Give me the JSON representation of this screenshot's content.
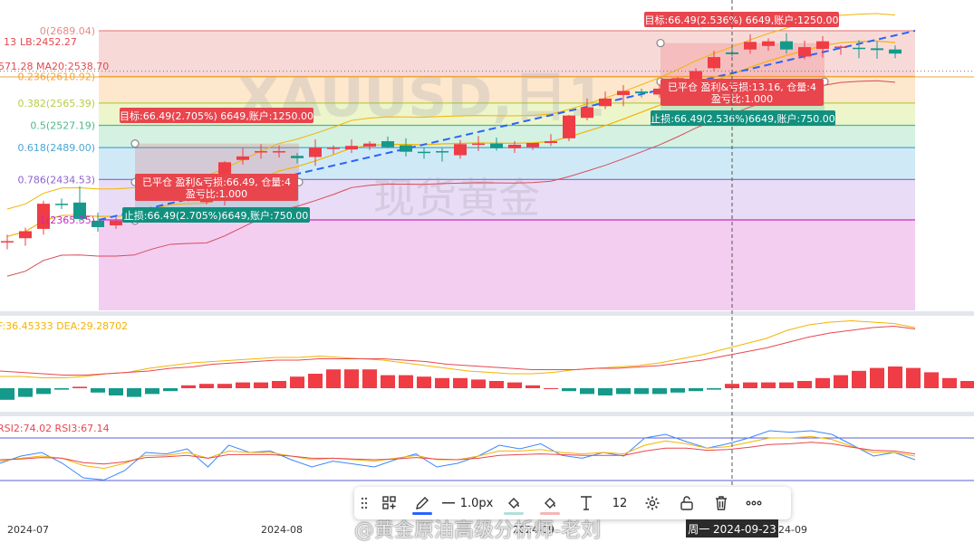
{
  "colors": {
    "up": "#ef3c45",
    "down": "#14998a",
    "ma": "#f3b400",
    "sar": "#ff7b3a",
    "trend": "#2962ff",
    "dif": "#f4b400",
    "dea": "#e8474f"
  },
  "watermark": {
    "symbol": "XAUUSD,日1",
    "name": "现货黄金",
    "credit": "@黄金原油高级分析师-老刘"
  },
  "fib": [
    {
      "label": "0(2689.04)",
      "price": 2689.04,
      "fill": "#f6d3d1",
      "line": "#e88a86"
    },
    {
      "label": "0.236(2610.92)",
      "price": 2610.92,
      "fill": "#fde3c4",
      "line": "#f2a53a"
    },
    {
      "label": "0.382(2565.39)",
      "price": 2565.39,
      "fill": "#eaf3c2",
      "line": "#b5cd48"
    },
    {
      "label": "0.5(2527.19)",
      "price": 2527.19,
      "fill": "#cdeedd",
      "line": "#4cb98a"
    },
    {
      "label": "0.618(2489.00)",
      "price": 2489.0,
      "fill": "#c7e6f4",
      "line": "#4aa6d4"
    },
    {
      "label": "0.786(2434.53)",
      "price": 2434.53,
      "fill": "#e4d6f4",
      "line": "#8e62d0"
    },
    {
      "label": "1(2365.35)",
      "price": 2365.35,
      "fill": "#f1c6ef",
      "line": "#c72bc0"
    },
    {
      "label": "",
      "price": 2250,
      "fill": "#f7c8da",
      "line": "#f7c8da"
    }
  ],
  "indicators": {
    "lb": "LB:2452.27",
    "ma": "571.28  MA20:2538.70",
    "ma_prefix": "13",
    "macd": "F:36.45333  DEA:29.28702",
    "rsi": "RSI2:74.02  RSI3:67.14"
  },
  "trades": [
    {
      "target": "目标:66.49(2.705%) 6649,账户:1250.00",
      "closed1": "已平仓 盈利&亏损:66.49, 仓量:4",
      "closed2": "盈亏比:1.000",
      "stop": "止损:66.49(2.705%)6649,账户:750.00"
    },
    {
      "target": "目标:66.49(2.536%) 6649,账户:1250.00",
      "closed1": "已平仓 盈利&亏损:13.16, 仓量:4",
      "closed2": "盈亏比:1.000",
      "stop": "止损:66.49(2.536%)6649,账户:750.00"
    }
  ],
  "xaxis": [
    "2024-07",
    "2024-08",
    "2024-09",
    "2024-09"
  ],
  "crosshair_label": "周一  2024-09-23",
  "toolbar": {
    "linewidth": "1.0px",
    "fontsize": "12",
    "blue": "#2962ff",
    "teal": "#b2dfdb",
    "pink": "#f6b5b5"
  },
  "chart_data": {
    "type": "candlestick",
    "title": "XAUUSD,日1",
    "candles": [
      {
        "o": 2327,
        "h": 2340,
        "l": 2315,
        "c": 2329
      },
      {
        "o": 2334,
        "h": 2352,
        "l": 2321,
        "c": 2346
      },
      {
        "o": 2350,
        "h": 2398,
        "l": 2340,
        "c": 2393
      },
      {
        "o": 2393,
        "h": 2402,
        "l": 2384,
        "c": 2392
      },
      {
        "o": 2395,
        "h": 2423,
        "l": 2362,
        "c": 2367
      },
      {
        "o": 2364,
        "h": 2378,
        "l": 2345,
        "c": 2353
      },
      {
        "o": 2356,
        "h": 2370,
        "l": 2350,
        "c": 2364
      },
      {
        "o": 2377,
        "h": 2384,
        "l": 2368,
        "c": 2378
      },
      {
        "o": 2404,
        "h": 2417,
        "l": 2398,
        "c": 2411
      },
      {
        "o": 2410,
        "h": 2418,
        "l": 2405,
        "c": 2411
      },
      {
        "o": 2406,
        "h": 2414,
        "l": 2397,
        "c": 2405
      },
      {
        "o": 2397,
        "h": 2420,
        "l": 2392,
        "c": 2398
      },
      {
        "o": 2401,
        "h": 2466,
        "l": 2390,
        "c": 2464
      },
      {
        "o": 2468,
        "h": 2488,
        "l": 2460,
        "c": 2474
      },
      {
        "o": 2482,
        "h": 2495,
        "l": 2470,
        "c": 2483
      },
      {
        "o": 2483,
        "h": 2493,
        "l": 2472,
        "c": 2483
      },
      {
        "o": 2475,
        "h": 2480,
        "l": 2462,
        "c": 2471
      },
      {
        "o": 2473,
        "h": 2503,
        "l": 2458,
        "c": 2489
      },
      {
        "o": 2487,
        "h": 2493,
        "l": 2478,
        "c": 2489
      },
      {
        "o": 2486,
        "h": 2503,
        "l": 2480,
        "c": 2492
      },
      {
        "o": 2491,
        "h": 2500,
        "l": 2485,
        "c": 2496
      },
      {
        "o": 2500,
        "h": 2508,
        "l": 2488,
        "c": 2490
      },
      {
        "o": 2493,
        "h": 2505,
        "l": 2474,
        "c": 2482
      },
      {
        "o": 2482,
        "h": 2489,
        "l": 2470,
        "c": 2480
      },
      {
        "o": 2483,
        "h": 2488,
        "l": 2465,
        "c": 2482
      },
      {
        "o": 2476,
        "h": 2502,
        "l": 2470,
        "c": 2495
      },
      {
        "o": 2494,
        "h": 2509,
        "l": 2483,
        "c": 2496
      },
      {
        "o": 2496,
        "h": 2506,
        "l": 2484,
        "c": 2488
      },
      {
        "o": 2488,
        "h": 2500,
        "l": 2480,
        "c": 2494
      },
      {
        "o": 2490,
        "h": 2496,
        "l": 2485,
        "c": 2497
      },
      {
        "o": 2497,
        "h": 2512,
        "l": 2492,
        "c": 2500
      },
      {
        "o": 2505,
        "h": 2545,
        "l": 2500,
        "c": 2544
      },
      {
        "o": 2540,
        "h": 2573,
        "l": 2536,
        "c": 2558
      },
      {
        "o": 2560,
        "h": 2585,
        "l": 2555,
        "c": 2573
      },
      {
        "o": 2579,
        "h": 2596,
        "l": 2560,
        "c": 2586
      },
      {
        "o": 2585,
        "h": 2590,
        "l": 2575,
        "c": 2582
      },
      {
        "o": 2580,
        "h": 2597,
        "l": 2574,
        "c": 2590
      },
      {
        "o": 2590,
        "h": 2610,
        "l": 2585,
        "c": 2608
      },
      {
        "o": 2600,
        "h": 2625,
        "l": 2595,
        "c": 2620
      },
      {
        "o": 2625,
        "h": 2655,
        "l": 2620,
        "c": 2644
      },
      {
        "o": 2652,
        "h": 2665,
        "l": 2645,
        "c": 2649
      },
      {
        "o": 2657,
        "h": 2683,
        "l": 2650,
        "c": 2670
      },
      {
        "o": 2663,
        "h": 2676,
        "l": 2655,
        "c": 2671
      },
      {
        "o": 2671,
        "h": 2685,
        "l": 2650,
        "c": 2657
      },
      {
        "o": 2645,
        "h": 2672,
        "l": 2640,
        "c": 2661
      },
      {
        "o": 2658,
        "h": 2680,
        "l": 2643,
        "c": 2671
      },
      {
        "o": 2660,
        "h": 2664,
        "l": 2648,
        "c": 2662
      },
      {
        "o": 2660,
        "h": 2673,
        "l": 2642,
        "c": 2659
      },
      {
        "o": 2659,
        "h": 2671,
        "l": 2641,
        "c": 2656
      },
      {
        "o": 2657,
        "h": 2664,
        "l": 2642,
        "c": 2650
      }
    ],
    "macd_hist": [
      -8,
      -6,
      -4,
      -1,
      1,
      -3,
      -5,
      -6,
      -4,
      -2,
      2,
      3,
      3,
      4,
      4,
      5,
      8,
      10,
      13,
      13,
      13,
      9,
      9,
      8,
      7,
      7,
      6,
      5,
      4,
      2,
      0,
      -2,
      -4,
      -5,
      -4,
      -4,
      -4,
      -3,
      -2,
      -1,
      3,
      4,
      4,
      4,
      5,
      7,
      9,
      12,
      14,
      15,
      14,
      11,
      7,
      5,
      3,
      1,
      -3
    ],
    "macd_dif": [
      2,
      2,
      1,
      1,
      2,
      4,
      5,
      8,
      10,
      12,
      13,
      14,
      15,
      16,
      16,
      17,
      16,
      15,
      14,
      12,
      10,
      8,
      6,
      5,
      4,
      4,
      5,
      7,
      8,
      9,
      10,
      12,
      15,
      18,
      22,
      26,
      30,
      36,
      40,
      42,
      43,
      42,
      41,
      38
    ],
    "macd_dea": [
      6,
      5,
      4,
      3,
      3,
      4,
      5,
      6,
      8,
      9,
      11,
      12,
      13,
      14,
      14,
      15,
      15,
      15,
      15,
      14,
      13,
      11,
      10,
      9,
      8,
      7,
      7,
      7,
      8,
      8,
      9,
      10,
      12,
      14,
      17,
      20,
      23,
      27,
      31,
      34,
      36,
      38,
      39,
      37
    ],
    "rsi1": [
      45,
      55,
      60,
      45,
      25,
      22,
      35,
      60,
      58,
      65,
      40,
      70,
      60,
      62,
      50,
      40,
      48,
      44,
      40,
      50,
      58,
      40,
      45,
      55,
      70,
      65,
      72,
      56,
      52,
      60,
      55,
      80,
      85,
      75,
      66,
      72,
      80,
      90,
      88,
      90,
      85,
      70,
      55,
      60,
      50
    ],
    "rsi2": [
      48,
      52,
      55,
      52,
      42,
      38,
      45,
      56,
      56,
      60,
      52,
      62,
      60,
      60,
      55,
      50,
      52,
      50,
      48,
      52,
      56,
      50,
      50,
      55,
      62,
      62,
      64,
      60,
      58,
      60,
      58,
      70,
      76,
      72,
      66,
      68,
      74,
      80,
      80,
      82,
      78,
      68,
      60,
      60,
      55
    ],
    "rsi3": [
      50,
      51,
      53,
      52,
      46,
      44,
      47,
      53,
      54,
      56,
      52,
      57,
      57,
      57,
      55,
      52,
      52,
      51,
      50,
      51,
      53,
      51,
      50,
      52,
      56,
      57,
      58,
      57,
      56,
      56,
      56,
      62,
      66,
      66,
      63,
      64,
      67,
      71,
      72,
      74,
      72,
      67,
      63,
      62,
      58
    ],
    "levels_rsi": [
      80,
      20
    ]
  }
}
